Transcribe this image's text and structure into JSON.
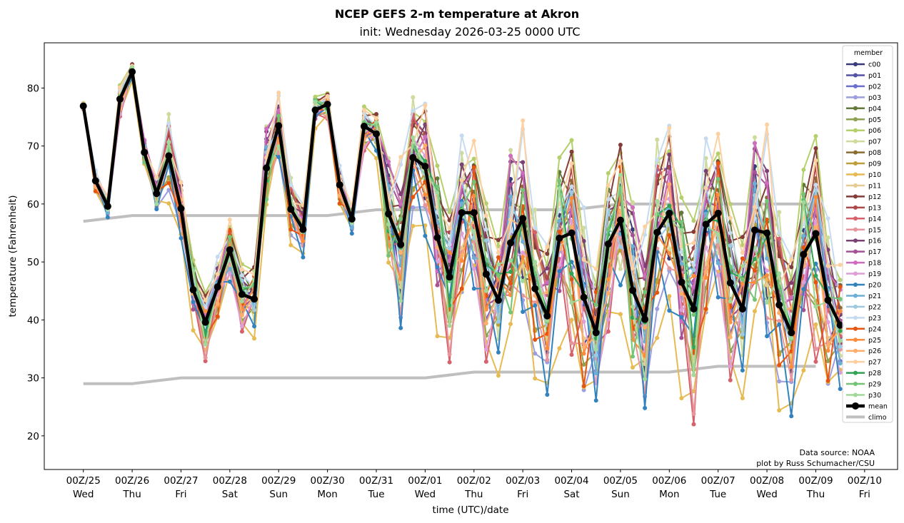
{
  "chart_data": {
    "type": "line",
    "title": "NCEP GEFS 2-m temperature at Akron",
    "subtitle": "init: Wednesday 2026-03-25 0000 UTC",
    "xlabel": "time (UTC)/date",
    "ylabel": "temperature (Fahrenheit)",
    "ylim": [
      14.2,
      87.8
    ],
    "yticks": [
      20,
      30,
      40,
      50,
      60,
      70,
      80
    ],
    "x_step_hours": 6,
    "x_start": "2026-03-25 00Z",
    "xlim_steps": [
      -3.2,
      66.7
    ],
    "xticks": [
      {
        "step": 0,
        "line1": "00Z/25",
        "line2": "Wed"
      },
      {
        "step": 4,
        "line1": "00Z/26",
        "line2": "Thu"
      },
      {
        "step": 8,
        "line1": "00Z/27",
        "line2": "Fri"
      },
      {
        "step": 12,
        "line1": "00Z/28",
        "line2": "Sat"
      },
      {
        "step": 16,
        "line1": "00Z/29",
        "line2": "Sun"
      },
      {
        "step": 20,
        "line1": "00Z/30",
        "line2": "Mon"
      },
      {
        "step": 24,
        "line1": "00Z/31",
        "line2": "Tue"
      },
      {
        "step": 28,
        "line1": "00Z/01",
        "line2": "Wed"
      },
      {
        "step": 32,
        "line1": "00Z/02",
        "line2": "Thu"
      },
      {
        "step": 36,
        "line1": "00Z/03",
        "line2": "Fri"
      },
      {
        "step": 40,
        "line1": "00Z/04",
        "line2": "Sat"
      },
      {
        "step": 44,
        "line1": "00Z/05",
        "line2": "Sun"
      },
      {
        "step": 48,
        "line1": "00Z/06",
        "line2": "Mon"
      },
      {
        "step": 52,
        "line1": "00Z/07",
        "line2": "Tue"
      },
      {
        "step": 56,
        "line1": "00Z/08",
        "line2": "Wed"
      },
      {
        "step": 60,
        "line1": "00Z/09",
        "line2": "Thu"
      },
      {
        "step": 64,
        "line1": "00Z/10",
        "line2": "Fri"
      }
    ],
    "mean": {
      "name": "mean",
      "color": "#000000",
      "values": [
        76.9,
        64,
        59.6,
        78.1,
        82.8,
        68.9,
        61.8,
        68.3,
        59.2,
        45.2,
        39.6,
        45.7,
        52.1,
        44.4,
        43.6,
        66.2,
        73.5,
        59.1,
        55.6,
        76.2,
        77.2,
        63.3,
        57.4,
        73.4,
        72.1,
        58.3,
        53,
        68,
        66.5,
        54.2,
        47.4,
        58.5,
        58.5,
        47.9,
        43.4,
        53.3,
        57.5,
        45.4,
        40.7,
        54.1,
        55,
        43.9,
        37.8,
        53.1,
        57.2,
        45.1,
        40.1,
        55.1,
        58.4,
        46.5,
        41.9,
        56.5,
        58.4,
        46.4,
        41.9,
        55.5,
        55,
        42.6,
        37.8,
        51.3,
        54.9,
        43.4,
        39.1
      ]
    },
    "climo": {
      "name": "climo",
      "color": "#bfbfbf",
      "steps": [
        0,
        4,
        8,
        12,
        16,
        20,
        24,
        28,
        32,
        36,
        40,
        44,
        48,
        52,
        56,
        60,
        64
      ],
      "high": [
        57,
        58,
        58,
        58,
        58,
        58,
        59,
        59,
        59,
        59,
        59,
        60,
        60,
        60,
        60,
        60,
        60
      ],
      "low": [
        29,
        29,
        30,
        30,
        30,
        30,
        30,
        30,
        31,
        31,
        31,
        31,
        31,
        32,
        32,
        32,
        32
      ]
    },
    "ensemble_spread": [
      0.3,
      1.2,
      1.4,
      1.8,
      1.0,
      1.4,
      1.6,
      4.5,
      3.2,
      3.5,
      3.2,
      3.5,
      4.0,
      3.8,
      4.2,
      4.5,
      3.2,
      3.4,
      3.0,
      1.6,
      1.2,
      2.2,
      1.8,
      2.5,
      2.6,
      6.0,
      8.5,
      6.5,
      7.5,
      8.5,
      7.0,
      9.0,
      9.5,
      9.0,
      8.0,
      10.0,
      9.5,
      8.5,
      8.5,
      9.5,
      10.0,
      10.5,
      8.5,
      9.0,
      10.0,
      9.5,
      9.0,
      10.0,
      10.5,
      10.0,
      9.5,
      10.0,
      10.5,
      10.0,
      9.5,
      10.0,
      10.5,
      10.0,
      9.0,
      10.0,
      10.5,
      9.5,
      8.0
    ],
    "members": [
      {
        "name": "c00",
        "color": "#393b79",
        "anom": [
          0.2,
          -0.5,
          0.9,
          -1.2,
          0.4,
          1.1,
          -0.8,
          0.6,
          -1.5,
          0.3
        ]
      },
      {
        "name": "p01",
        "color": "#5254a3",
        "anom": [
          -0.4,
          0.8,
          -1.1,
          0.5,
          1.3,
          -0.7,
          0.2,
          -1.4,
          0.9,
          0.1
        ]
      },
      {
        "name": "p02",
        "color": "#6b6ecf",
        "anom": [
          0.7,
          -0.2,
          0.4,
          1.2,
          -0.9,
          -1.3,
          0.8,
          0.1,
          -0.6,
          1.0
        ]
      },
      {
        "name": "p03",
        "color": "#9c9ede",
        "anom": [
          -1.0,
          -1.3,
          0.3,
          -0.6,
          -1.8,
          0.5,
          -1.1,
          -0.4,
          0.2,
          -1.6
        ]
      },
      {
        "name": "p04",
        "color": "#637939",
        "anom": [
          0.5,
          0.9,
          -0.3,
          1.4,
          0.6,
          -0.2,
          1.1,
          0.8,
          -0.5,
          0.7
        ]
      },
      {
        "name": "p05",
        "color": "#8ca252",
        "anom": [
          -0.6,
          -1.4,
          -0.9,
          0.2,
          -0.4,
          -1.2,
          -0.7,
          0.3,
          -1.7,
          -0.8
        ]
      },
      {
        "name": "p06",
        "color": "#b5cf6b",
        "anom": [
          1.2,
          1.5,
          0.8,
          1.7,
          0.9,
          1.3,
          1.6,
          0.5,
          1.1,
          1.4
        ]
      },
      {
        "name": "p07",
        "color": "#cedb9c",
        "anom": [
          0.9,
          -0.8,
          1.6,
          -0.3,
          1.8,
          -0.5,
          0.4,
          -1.2,
          1.3,
          -0.9
        ]
      },
      {
        "name": "p08",
        "color": "#8c6d31",
        "anom": [
          0.3,
          1.0,
          0.6,
          -0.8,
          0.5,
          1.2,
          0.7,
          -0.3,
          0.9,
          0.4
        ]
      },
      {
        "name": "p09",
        "color": "#bd9e39",
        "anom": [
          -0.8,
          0.2,
          -0.5,
          -1.0,
          0.1,
          -0.6,
          -0.9,
          0.4,
          -0.3,
          -1.1
        ]
      },
      {
        "name": "p10",
        "color": "#e7ba52",
        "anom": [
          -1.5,
          -2.0,
          -1.2,
          -0.7,
          -1.9,
          -1.4,
          -0.6,
          -1.7,
          -1.0,
          -2.2
        ]
      },
      {
        "name": "p11",
        "color": "#e7cb94",
        "anom": [
          0.1,
          -0.9,
          -0.4,
          0.6,
          -1.1,
          0.3,
          -0.5,
          -1.3,
          0.7,
          -0.2
        ]
      },
      {
        "name": "p12",
        "color": "#843c39",
        "anom": [
          1.1,
          0.6,
          1.4,
          0.3,
          1.0,
          0.8,
          1.5,
          0.2,
          0.6,
          1.2
        ]
      },
      {
        "name": "p13",
        "color": "#ad494a",
        "anom": [
          1.5,
          0.4,
          -0.7,
          1.1,
          0.2,
          -1.0,
          0.9,
          1.3,
          -0.4,
          0.5
        ]
      },
      {
        "name": "p14",
        "color": "#d6616b",
        "anom": [
          -0.3,
          1.3,
          0.5,
          -1.5,
          -2.1,
          0.9,
          -0.2,
          -1.8,
          0.3,
          -0.9
        ]
      },
      {
        "name": "p15",
        "color": "#e7969c",
        "anom": [
          -0.7,
          -1.6,
          -0.2,
          -1.1,
          0.4,
          -1.9,
          -0.4,
          0.2,
          -1.3,
          -0.6
        ]
      },
      {
        "name": "p16",
        "color": "#7b4173",
        "anom": [
          0.6,
          1.4,
          0.9,
          -0.4,
          1.2,
          0.4,
          0.3,
          1.0,
          -0.2,
          0.8
        ]
      },
      {
        "name": "p17",
        "color": "#a55194",
        "anom": [
          -0.2,
          0.3,
          1.0,
          0.7,
          -0.6,
          0.9,
          -1.2,
          0.5,
          0.8,
          -0.3
        ]
      },
      {
        "name": "p18",
        "color": "#ce6dbd",
        "anom": [
          0.8,
          -0.4,
          0.2,
          1.5,
          0.7,
          -0.8,
          1.0,
          -0.6,
          0.4,
          1.1
        ]
      },
      {
        "name": "p19",
        "color": "#de9ed6",
        "anom": [
          0.4,
          -1.1,
          -1.6,
          0.9,
          -0.3,
          -0.9,
          0.6,
          -0.2,
          -1.2,
          0.2
        ]
      },
      {
        "name": "p20",
        "color": "#3182bd",
        "anom": [
          -0.5,
          0.5,
          -1.3,
          -0.2,
          -1.0,
          0.7,
          -1.5,
          -0.9,
          -2.0,
          -0.4
        ]
      },
      {
        "name": "p21",
        "color": "#6baed6",
        "anom": [
          0.2,
          0.7,
          0.1,
          -0.9,
          0.3,
          0.2,
          0.8,
          -0.7,
          0.5,
          0.0
        ]
      },
      {
        "name": "p22",
        "color": "#9ecae1",
        "anom": [
          -0.1,
          0.1,
          0.7,
          0.4,
          -0.7,
          1.0,
          -0.3,
          0.6,
          -0.1,
          -0.5
        ]
      },
      {
        "name": "p23",
        "color": "#c6dbef",
        "anom": [
          1.0,
          1.8,
          0.2,
          0.8,
          1.6,
          -0.1,
          1.3,
          0.9,
          0.2,
          1.5
        ]
      },
      {
        "name": "p24",
        "color": "#e6550d",
        "anom": [
          1.3,
          -0.6,
          -1.4,
          0.6,
          -0.8,
          -1.7,
          0.5,
          -1.1,
          1.2,
          -0.7
        ]
      },
      {
        "name": "p25",
        "color": "#fd8d3c",
        "anom": [
          -0.9,
          -0.3,
          0.6,
          -1.3,
          -0.5,
          0.6,
          -1.0,
          0.7,
          -0.8,
          0.3
        ]
      },
      {
        "name": "p26",
        "color": "#fdae6b",
        "anom": [
          0.0,
          0.4,
          -0.8,
          0.1,
          0.8,
          -0.4,
          0.1,
          -0.5,
          0.4,
          -1.3
        ]
      },
      {
        "name": "p27",
        "color": "#fdd0a2",
        "anom": [
          1.4,
          1.1,
          0.4,
          1.9,
          0.5,
          1.6,
          0.7,
          1.2,
          0.1,
          0.9
        ]
      },
      {
        "name": "p28",
        "color": "#31a354",
        "anom": [
          -0.4,
          -0.7,
          1.2,
          -0.5,
          0.3,
          0.1,
          -0.6,
          1.5,
          -0.7,
          0.6
        ]
      },
      {
        "name": "p29",
        "color": "#74c476",
        "anom": [
          0.5,
          0.0,
          -0.6,
          0.9,
          -1.2,
          1.4,
          0.2,
          -0.8,
          1.6,
          -0.1
        ]
      },
      {
        "name": "p30",
        "color": "#a1d99b",
        "anom": [
          -1.2,
          0.9,
          0.3,
          -1.4,
          1.1,
          -0.3,
          -1.3,
          0.3,
          -0.9,
          1.3
        ]
      }
    ],
    "legend": {
      "title": "member",
      "position": "right",
      "mean_label": "mean",
      "climo_label": "climo"
    },
    "grid": false,
    "annotations": [
      "Data source: NOAA",
      "plot by Russ Schumacher/CSU"
    ]
  }
}
